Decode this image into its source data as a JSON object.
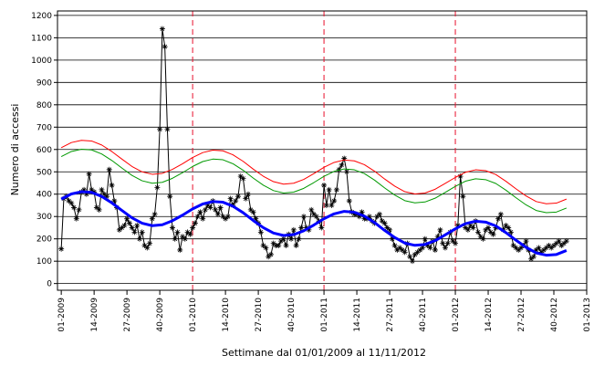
{
  "chart_data": {
    "type": "line",
    "xlabel": "Settimane dal 01/01/2009 al 11/11/2012",
    "ylabel": "Numero di accessi",
    "xlim": [
      -1.5,
      208
    ],
    "ylim": [
      -30,
      1220
    ],
    "yticks": [
      0,
      100,
      200,
      300,
      400,
      500,
      600,
      700,
      800,
      900,
      1000,
      1100,
      1200
    ],
    "xticks": [
      {
        "value": 0,
        "label": "01-2009"
      },
      {
        "value": 13,
        "label": "14-2009"
      },
      {
        "value": 26,
        "label": "27-2009"
      },
      {
        "value": 39,
        "label": "40-2009"
      },
      {
        "value": 52,
        "label": "01-2010"
      },
      {
        "value": 65,
        "label": "14-2010"
      },
      {
        "value": 78,
        "label": "27-2010"
      },
      {
        "value": 91,
        "label": "40-2010"
      },
      {
        "value": 104,
        "label": "01-2011"
      },
      {
        "value": 117,
        "label": "14-2011"
      },
      {
        "value": 130,
        "label": "27-2011"
      },
      {
        "value": 143,
        "label": "40-2011"
      },
      {
        "value": 156,
        "label": "01-2012"
      },
      {
        "value": 169,
        "label": "14-2012"
      },
      {
        "value": 182,
        "label": "27-2012"
      },
      {
        "value": 195,
        "label": "40-2012"
      },
      {
        "value": 208,
        "label": "01-2013"
      }
    ],
    "grid": true,
    "vlines": [
      52,
      104,
      156,
      208
    ],
    "vline_color": "#e8102c",
    "series": [
      {
        "color": "#000000",
        "marker": "asterisk",
        "x": [
          0,
          1,
          2,
          3,
          4,
          5,
          6,
          7,
          8,
          9,
          10,
          11,
          12,
          13,
          14,
          15,
          16,
          17,
          18,
          19,
          20,
          21,
          22,
          23,
          24,
          25,
          26,
          27,
          28,
          29,
          30,
          31,
          32,
          33,
          34,
          35,
          36,
          37,
          38,
          39,
          40,
          41,
          42,
          43,
          44,
          45,
          46,
          47,
          48,
          49,
          50,
          51,
          52,
          53,
          54,
          55,
          56,
          57,
          58,
          59,
          60,
          61,
          62,
          63,
          64,
          65,
          66,
          67,
          68,
          69,
          70,
          71,
          72,
          73,
          74,
          75,
          76,
          77,
          78,
          79,
          80,
          81,
          82,
          83,
          84,
          85,
          86,
          87,
          88,
          89,
          90,
          91,
          92,
          93,
          94,
          95,
          96,
          97,
          98,
          99,
          100,
          101,
          102,
          103,
          104,
          105,
          106,
          107,
          108,
          109,
          110,
          111,
          112,
          113,
          114,
          115,
          116,
          117,
          118,
          119,
          120,
          121,
          122,
          123,
          124,
          125,
          126,
          127,
          128,
          129,
          130,
          131,
          132,
          133,
          134,
          135,
          136,
          137,
          138,
          139,
          140,
          141,
          142,
          143,
          144,
          145,
          146,
          147,
          148,
          149,
          150,
          151,
          152,
          153,
          154,
          155,
          156,
          157,
          158,
          159,
          160,
          161,
          162,
          163,
          164,
          165,
          166,
          167,
          168,
          169,
          170,
          171,
          172,
          173,
          174,
          175,
          176,
          177,
          178,
          179,
          180,
          181,
          182,
          183,
          184,
          185,
          186,
          187,
          188,
          189,
          190,
          191,
          192,
          193,
          194,
          195,
          196,
          197,
          198,
          199,
          200
        ],
        "values": [
          155,
          380,
          390,
          370,
          360,
          340,
          290,
          330,
          410,
          420,
          400,
          490,
          420,
          410,
          340,
          330,
          420,
          400,
          390,
          510,
          440,
          370,
          340,
          240,
          250,
          260,
          290,
          270,
          250,
          230,
          260,
          200,
          230,
          170,
          160,
          180,
          290,
          310,
          430,
          690,
          1140,
          1060,
          690,
          390,
          250,
          200,
          230,
          150,
          210,
          200,
          230,
          220,
          250,
          270,
          300,
          320,
          290,
          330,
          350,
          340,
          370,
          330,
          310,
          340,
          300,
          290,
          300,
          380,
          350,
          370,
          390,
          480,
          470,
          380,
          400,
          330,
          320,
          290,
          270,
          230,
          170,
          160,
          120,
          130,
          180,
          170,
          170,
          190,
          200,
          170,
          220,
          200,
          240,
          170,
          200,
          250,
          300,
          250,
          240,
          330,
          310,
          300,
          280,
          250,
          440,
          350,
          420,
          350,
          370,
          420,
          510,
          530,
          560,
          500,
          370,
          320,
          310,
          310,
          300,
          320,
          290,
          290,
          300,
          280,
          270,
          300,
          310,
          280,
          270,
          250,
          240,
          200,
          170,
          150,
          160,
          150,
          140,
          180,
          120,
          100,
          130,
          140,
          150,
          160,
          200,
          170,
          160,
          190,
          150,
          210,
          240,
          180,
          160,
          180,
          230,
          190,
          180,
          260,
          480,
          390,
          250,
          240,
          260,
          250,
          280,
          230,
          210,
          200,
          240,
          250,
          230,
          220,
          250,
          290,
          310,
          240,
          260,
          250,
          230,
          170,
          160,
          150,
          160,
          170,
          190,
          150,
          110,
          120,
          150,
          160,
          140,
          150,
          160,
          170,
          160,
          170,
          180,
          190,
          170,
          180,
          190
        ]
      },
      {
        "color": "#0000ff",
        "width": 3,
        "x": [
          0,
          4,
          8,
          12,
          16,
          20,
          24,
          28,
          32,
          36,
          40,
          44,
          48,
          52,
          56,
          60,
          64,
          68,
          72,
          76,
          80,
          84,
          88,
          92,
          96,
          100,
          104,
          108,
          112,
          116,
          120,
          124,
          128,
          132,
          136,
          140,
          144,
          148,
          152,
          156,
          160,
          164,
          168,
          172,
          176,
          180,
          184,
          188,
          192,
          196,
          200
        ],
        "values": [
          378,
          401,
          411,
          408,
          390,
          361,
          327,
          294,
          270,
          259,
          263,
          281,
          306,
          334,
          356,
          367,
          364,
          346,
          317,
          282,
          250,
          226,
          215,
          219,
          236,
          262,
          290,
          312,
          323,
          319,
          302,
          273,
          238,
          206,
          181,
          171,
          175,
          192,
          218,
          245,
          268,
          279,
          275,
          258,
          228,
          194,
          162,
          137,
          127,
          130,
          148
        ]
      },
      {
        "color": "#ff0000",
        "width": 1,
        "x": [
          0,
          4,
          8,
          12,
          16,
          20,
          24,
          28,
          32,
          36,
          40,
          44,
          48,
          52,
          56,
          60,
          64,
          68,
          72,
          76,
          80,
          84,
          88,
          92,
          96,
          100,
          104,
          108,
          112,
          116,
          120,
          124,
          128,
          132,
          136,
          140,
          144,
          148,
          152,
          156,
          160,
          164,
          168,
          172,
          176,
          180,
          184,
          188,
          192,
          196,
          200
        ],
        "values": [
          608,
          631,
          641,
          638,
          620,
          591,
          557,
          524,
          500,
          489,
          493,
          511,
          536,
          564,
          586,
          597,
          594,
          576,
          547,
          512,
          480,
          456,
          445,
          449,
          466,
          492,
          520,
          542,
          553,
          549,
          532,
          503,
          468,
          436,
          411,
          401,
          405,
          422,
          448,
          475,
          498,
          509,
          505,
          488,
          458,
          424,
          392,
          367,
          357,
          360,
          378
        ]
      },
      {
        "color": "#009900",
        "width": 1,
        "x": [
          0,
          4,
          8,
          12,
          16,
          20,
          24,
          28,
          32,
          36,
          40,
          44,
          48,
          52,
          56,
          60,
          64,
          68,
          72,
          76,
          80,
          84,
          88,
          92,
          96,
          100,
          104,
          108,
          112,
          116,
          120,
          124,
          128,
          132,
          136,
          140,
          144,
          148,
          152,
          156,
          160,
          164,
          168,
          172,
          176,
          180,
          184,
          188,
          192,
          196,
          200
        ],
        "values": [
          568,
          591,
          601,
          598,
          580,
          551,
          517,
          484,
          460,
          449,
          453,
          471,
          496,
          524,
          546,
          557,
          554,
          536,
          507,
          472,
          440,
          416,
          405,
          409,
          426,
          452,
          480,
          502,
          513,
          509,
          492,
          463,
          428,
          396,
          371,
          361,
          365,
          382,
          408,
          435,
          458,
          469,
          465,
          448,
          418,
          384,
          352,
          327,
          317,
          320,
          338
        ]
      }
    ]
  }
}
